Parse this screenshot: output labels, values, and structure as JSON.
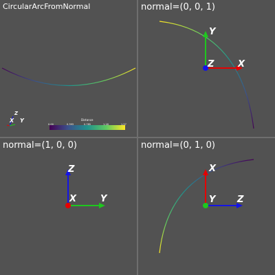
{
  "viewports": [
    {
      "title": "CircularArcFromNormal"
    },
    {
      "title": "normal=(0, 0, 1)"
    },
    {
      "title": "normal=(1, 0, 0)"
    },
    {
      "title": "normal=(0, 1, 0)"
    }
  ],
  "scalar_bar": {
    "title": "Distance",
    "tick_labels": [
      "0.00",
      "0.393",
      "0.785",
      "1.18",
      "1.57"
    ],
    "colormap": [
      "#440154",
      "#3b528b",
      "#21918c",
      "#5ec962",
      "#fde725"
    ]
  },
  "orientation_marker": {
    "x": "X",
    "y": "Y",
    "z": "Z"
  },
  "axes": {
    "normal_001": {
      "right": "X",
      "up": "Y",
      "center": "Z"
    },
    "normal_100": {
      "right": "Y",
      "up": "Z",
      "center": "X"
    },
    "normal_010": {
      "right": "Z",
      "up": "X",
      "center": "Y"
    }
  },
  "colors": {
    "background": "#525252",
    "x_axis": "#e60000",
    "y_axis": "#1ec81e",
    "z_axis": "#1414e6"
  }
}
